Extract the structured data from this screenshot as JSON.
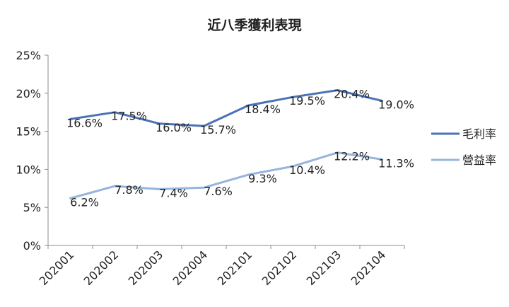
{
  "chart_data": {
    "type": "line",
    "title": "近八季獲利表現",
    "categories": [
      "202001",
      "202002",
      "202003",
      "202004",
      "202101",
      "202102",
      "202103",
      "202104"
    ],
    "y_ticks": [
      "0%",
      "5%",
      "10%",
      "15%",
      "20%",
      "25%"
    ],
    "ylim": [
      0,
      25
    ],
    "xlabel": "",
    "ylabel": "",
    "grid": false,
    "legend_position": "right",
    "series": [
      {
        "name": "毛利率",
        "color": "#4a72b8",
        "values": [
          16.6,
          17.5,
          16.0,
          15.7,
          18.4,
          19.5,
          20.4,
          19.0
        ],
        "labels": [
          "16.6%",
          "17.5%",
          "16.0%",
          "15.7%",
          "18.4%",
          "19.5%",
          "20.4%",
          "19.0%"
        ]
      },
      {
        "name": "營益率",
        "color": "#97b4dc",
        "values": [
          6.2,
          7.8,
          7.4,
          7.6,
          9.3,
          10.4,
          12.2,
          11.3
        ],
        "labels": [
          "6.2%",
          "7.8%",
          "7.4%",
          "7.6%",
          "9.3%",
          "10.4%",
          "12.2%",
          "11.3%"
        ]
      }
    ]
  }
}
